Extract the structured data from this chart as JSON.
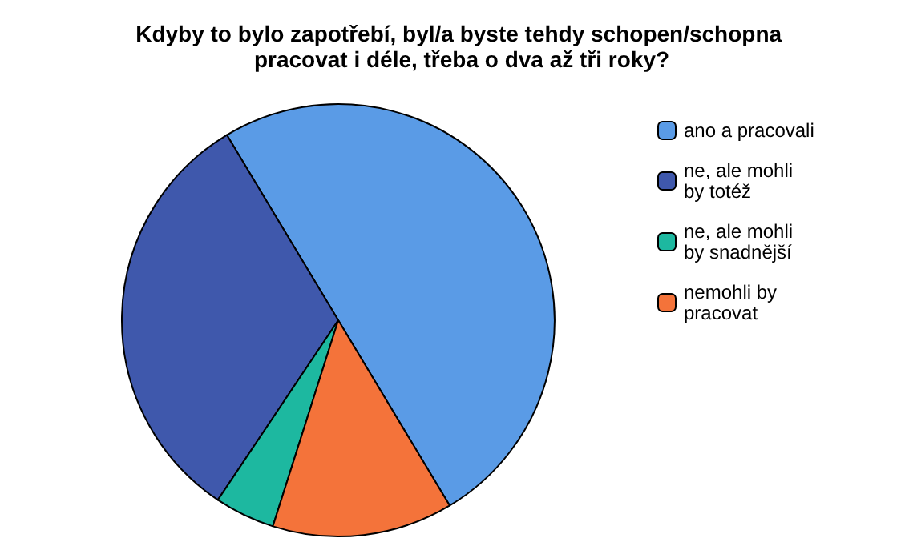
{
  "chart_data": {
    "type": "pie",
    "title": "Kdyby to bylo zapotřebí, byl/a byste tehdy schopen/schopna pracovat i déle, třeba o dva až tři roky?",
    "categories": [
      "ano a pracovali",
      "ne, ale mohli by totéž",
      "ne, ale mohli by snadnější",
      "nemohli by pracovat"
    ],
    "values": [
      50,
      32,
      4.5,
      13.5
    ],
    "colors": [
      "#5a9be6",
      "#3f58ac",
      "#1db8a0",
      "#f4733a"
    ],
    "legend": "right"
  }
}
